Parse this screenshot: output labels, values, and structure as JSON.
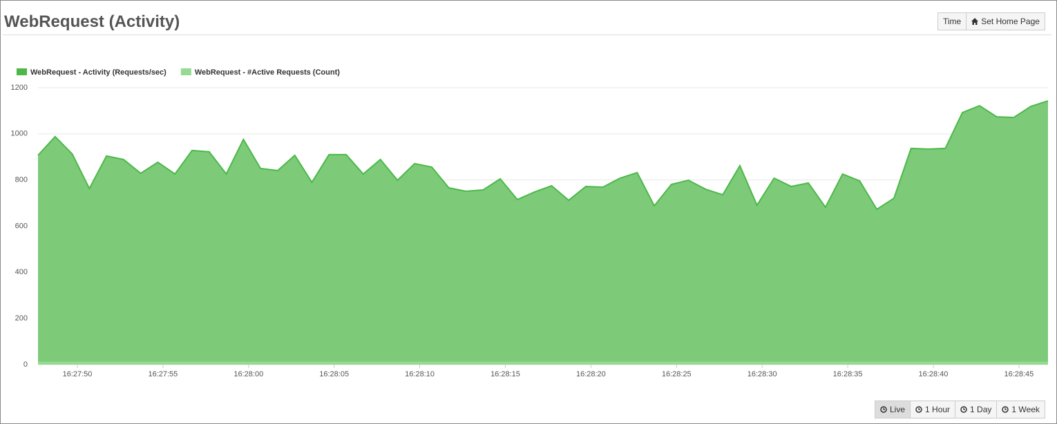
{
  "header": {
    "title": "WebRequest (Activity)",
    "buttons": [
      "Time",
      "Set Home Page"
    ]
  },
  "footer": {
    "buttons": [
      "Live",
      "1 Hour",
      "1 Day",
      "1 Week"
    ]
  },
  "chart_data": {
    "type": "area",
    "x": [
      59267.7,
      59268.7,
      59269.7,
      59270.7,
      59271.7,
      59272.7,
      59273.7,
      59274.7,
      59275.7,
      59276.7,
      59277.7,
      59278.7,
      59279.7,
      59280.7,
      59281.7,
      59282.7,
      59283.7,
      59284.7,
      59285.7,
      59286.7,
      59287.7,
      59288.7,
      59289.7,
      59290.7,
      59291.7,
      59292.7,
      59293.7,
      59294.7,
      59295.7,
      59296.7,
      59297.7,
      59298.7,
      59299.7,
      59300.7,
      59301.7,
      59302.7,
      59303.7,
      59304.7,
      59305.7,
      59306.7,
      59307.7,
      59308.7,
      59309.7,
      59310.7,
      59311.7,
      59312.7,
      59313.7,
      59314.7,
      59315.7,
      59316.7,
      59317.7,
      59318.7,
      59319.7,
      59320.7,
      59321.7,
      59322.7,
      59323.7,
      59324.7,
      59325.7,
      59326.7
    ],
    "series": [
      {
        "name": "WebRequest - Activity (Requests/sec)",
        "color": "#4cb84a",
        "fill": "#7dcb79",
        "values": [
          907,
          988,
          913,
          763,
          904,
          889,
          829,
          877,
          826,
          928,
          922,
          826,
          976,
          850,
          841,
          907,
          790,
          910,
          910,
          826,
          889,
          799,
          871,
          856,
          766,
          751,
          757,
          805,
          715,
          748,
          775,
          712,
          772,
          769,
          808,
          832,
          688,
          781,
          799,
          760,
          736,
          862,
          691,
          808,
          772,
          787,
          682,
          826,
          796,
          673,
          721,
          937,
          934,
          937,
          1092,
          1122,
          1074,
          1071,
          1119,
          1143
        ]
      },
      {
        "name": "WebRequest - #Active Requests (Count)",
        "color": "#94da90",
        "fill": "#94da90",
        "values": [
          10,
          10,
          10,
          10,
          10,
          10,
          10,
          10,
          10,
          10,
          10,
          10,
          10,
          10,
          10,
          10,
          10,
          10,
          10,
          10,
          10,
          10,
          10,
          10,
          10,
          10,
          10,
          10,
          10,
          10,
          10,
          10,
          10,
          10,
          10,
          10,
          10,
          10,
          10,
          10,
          10,
          10,
          10,
          10,
          10,
          10,
          10,
          10,
          10,
          10,
          10,
          10,
          10,
          10,
          10,
          10,
          10,
          10,
          10,
          10
        ]
      }
    ],
    "xlim": [
      59267.7,
      59326.7
    ],
    "xticks": [
      {
        "value": 59270,
        "label": "16:27:50"
      },
      {
        "value": 59275,
        "label": "16:27:55"
      },
      {
        "value": 59280,
        "label": "16:28:00"
      },
      {
        "value": 59285,
        "label": "16:28:05"
      },
      {
        "value": 59290,
        "label": "16:28:10"
      },
      {
        "value": 59295,
        "label": "16:28:15"
      },
      {
        "value": 59300,
        "label": "16:28:20"
      },
      {
        "value": 59305,
        "label": "16:28:25"
      },
      {
        "value": 59310,
        "label": "16:28:30"
      },
      {
        "value": 59315,
        "label": "16:28:35"
      },
      {
        "value": 59320,
        "label": "16:28:40"
      },
      {
        "value": 59325,
        "label": "16:28:45"
      }
    ],
    "ylim": [
      0,
      1200
    ],
    "yticks": [
      0,
      200,
      400,
      600,
      800,
      1000,
      1200
    ],
    "grid": true,
    "legend": "top-left"
  }
}
